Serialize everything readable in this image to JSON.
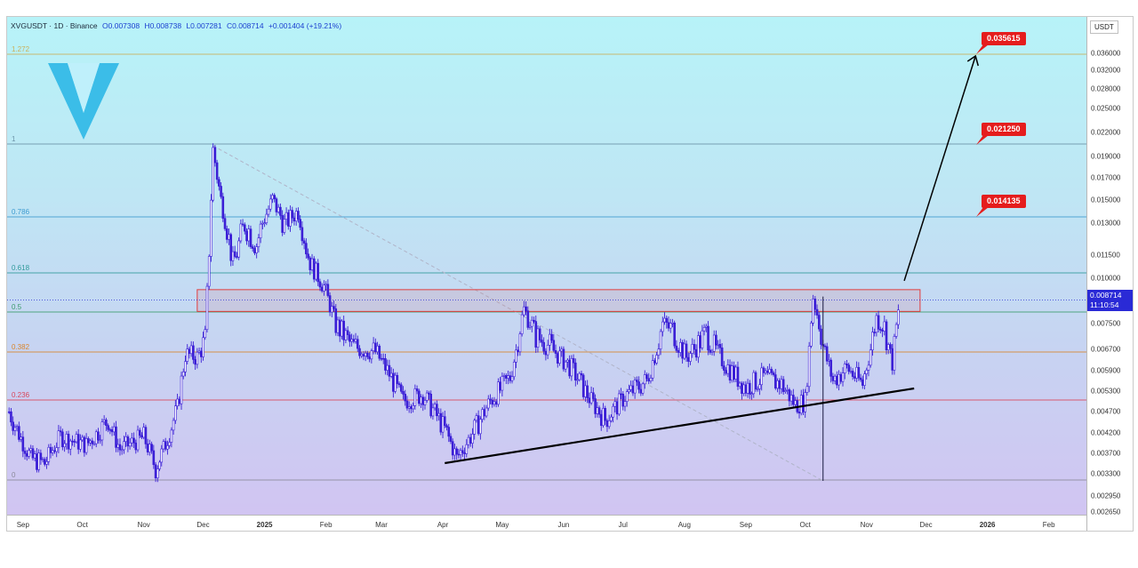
{
  "header": {
    "symbol": "XVGUSDT · 1D · Binance",
    "open": "O0.007308",
    "high": "H0.008738",
    "low": "L0.007281",
    "close": "C0.008714",
    "change": "+0.001404 (+19.21%)"
  },
  "price_axis": {
    "unit": "USDT",
    "current_price": "0.008714",
    "countdown": "11:10:54",
    "ticks": [
      "0.036000",
      "0.032000",
      "0.028000",
      "0.025000",
      "0.022000",
      "0.019000",
      "0.017000",
      "0.015000",
      "0.013000",
      "0.011500",
      "0.010000",
      "0.007500",
      "0.006700",
      "0.005900",
      "0.005300",
      "0.004700",
      "0.004200",
      "0.003700",
      "0.003300",
      "0.002950",
      "0.002650"
    ]
  },
  "time_axis": {
    "ticks": [
      {
        "label": "Sep",
        "bold": false
      },
      {
        "label": "Oct",
        "bold": false
      },
      {
        "label": "Nov",
        "bold": false
      },
      {
        "label": "Dec",
        "bold": false
      },
      {
        "label": "2025",
        "bold": true
      },
      {
        "label": "Feb",
        "bold": false
      },
      {
        "label": "Mar",
        "bold": false
      },
      {
        "label": "Apr",
        "bold": false
      },
      {
        "label": "May",
        "bold": false
      },
      {
        "label": "Jun",
        "bold": false
      },
      {
        "label": "Jul",
        "bold": false
      },
      {
        "label": "Aug",
        "bold": false
      },
      {
        "label": "Sep",
        "bold": false
      },
      {
        "label": "Oct",
        "bold": false
      },
      {
        "label": "Nov",
        "bold": false
      },
      {
        "label": "Dec",
        "bold": false
      },
      {
        "label": "2026",
        "bold": true
      },
      {
        "label": "Feb",
        "bold": false
      }
    ]
  },
  "fib_levels": [
    {
      "label": "1.272",
      "color": "#c9b05a"
    },
    {
      "label": "1",
      "color": "#6b93a8"
    },
    {
      "label": "0.786",
      "color": "#3d9bd0"
    },
    {
      "label": "0.618",
      "color": "#2f9a9a"
    },
    {
      "label": "0.5",
      "color": "#3c9b6c"
    },
    {
      "label": "0.382",
      "color": "#d9852b"
    },
    {
      "label": "0.236",
      "color": "#d9455a"
    },
    {
      "label": "0",
      "color": "#8a8a9a"
    }
  ],
  "targets": [
    "0.035615",
    "0.021250",
    "0.014135"
  ],
  "colors": {
    "candle": "#3b1fd6",
    "resistance_zone": "#e23c3c",
    "target": "#e51d1d",
    "logo": "#3bbde8"
  },
  "chart_data": {
    "type": "candlestick",
    "x_type": "date",
    "y_scale": "log",
    "x_range": [
      "2024-08-24",
      "2026-02-20"
    ],
    "resistance_zone": [
      0.0081,
      0.0093
    ],
    "trendline": {
      "from": {
        "date": "2025-04-02",
        "price": 0.0035
      },
      "to": {
        "date": "2025-11-25",
        "price": 0.0053
      }
    },
    "projection": {
      "from": {
        "date": "2025-11-20",
        "price": 0.0093
      },
      "to": {
        "date": "2025-12-26",
        "price": 0.0352
      }
    },
    "close": [
      {
        "date": "2024-08-25",
        "price": 0.0047
      },
      {
        "date": "2024-09-05",
        "price": 0.0036
      },
      {
        "date": "2024-09-12",
        "price": 0.0035
      },
      {
        "date": "2024-09-20",
        "price": 0.0041
      },
      {
        "date": "2024-10-03",
        "price": 0.0039
      },
      {
        "date": "2024-10-14",
        "price": 0.0045
      },
      {
        "date": "2024-10-20",
        "price": 0.0038
      },
      {
        "date": "2024-11-01",
        "price": 0.0041
      },
      {
        "date": "2024-11-07",
        "price": 0.0034
      },
      {
        "date": "2024-11-11",
        "price": 0.0038
      },
      {
        "date": "2024-11-18",
        "price": 0.0048
      },
      {
        "date": "2024-11-22",
        "price": 0.0065
      },
      {
        "date": "2024-11-28",
        "price": 0.0064
      },
      {
        "date": "2024-12-02",
        "price": 0.007
      },
      {
        "date": "2024-12-06",
        "price": 0.0198
      },
      {
        "date": "2024-12-10",
        "price": 0.015
      },
      {
        "date": "2024-12-16",
        "price": 0.011
      },
      {
        "date": "2024-12-22",
        "price": 0.013
      },
      {
        "date": "2024-12-28",
        "price": 0.012
      },
      {
        "date": "2025-01-05",
        "price": 0.015
      },
      {
        "date": "2025-01-11",
        "price": 0.013
      },
      {
        "date": "2025-01-18",
        "price": 0.014
      },
      {
        "date": "2025-01-24",
        "price": 0.011
      },
      {
        "date": "2025-01-31",
        "price": 0.0095
      },
      {
        "date": "2025-02-06",
        "price": 0.0075
      },
      {
        "date": "2025-02-14",
        "price": 0.0068
      },
      {
        "date": "2025-02-26",
        "price": 0.0066
      },
      {
        "date": "2025-03-05",
        "price": 0.0058
      },
      {
        "date": "2025-03-12",
        "price": 0.005
      },
      {
        "date": "2025-03-22",
        "price": 0.0052
      },
      {
        "date": "2025-04-03",
        "price": 0.0042
      },
      {
        "date": "2025-04-08",
        "price": 0.0036
      },
      {
        "date": "2025-04-15",
        "price": 0.0041
      },
      {
        "date": "2025-04-25",
        "price": 0.005
      },
      {
        "date": "2025-05-05",
        "price": 0.0057
      },
      {
        "date": "2025-05-12",
        "price": 0.0082
      },
      {
        "date": "2025-05-18",
        "price": 0.0071
      },
      {
        "date": "2025-05-25",
        "price": 0.0068
      },
      {
        "date": "2025-06-05",
        "price": 0.006
      },
      {
        "date": "2025-06-15",
        "price": 0.005
      },
      {
        "date": "2025-06-22",
        "price": 0.0045
      },
      {
        "date": "2025-07-03",
        "price": 0.0052
      },
      {
        "date": "2025-07-13",
        "price": 0.0056
      },
      {
        "date": "2025-07-21",
        "price": 0.0075
      },
      {
        "date": "2025-07-26",
        "price": 0.0073
      },
      {
        "date": "2025-08-02",
        "price": 0.0064
      },
      {
        "date": "2025-08-12",
        "price": 0.0072
      },
      {
        "date": "2025-08-22",
        "price": 0.0061
      },
      {
        "date": "2025-09-01",
        "price": 0.0054
      },
      {
        "date": "2025-09-10",
        "price": 0.0057
      },
      {
        "date": "2025-09-19",
        "price": 0.0055
      },
      {
        "date": "2025-09-26",
        "price": 0.0049
      },
      {
        "date": "2025-10-01",
        "price": 0.005
      },
      {
        "date": "2025-10-05",
        "price": 0.0089
      },
      {
        "date": "2025-10-10",
        "price": 0.0068
      },
      {
        "date": "2025-10-15",
        "price": 0.0056
      },
      {
        "date": "2025-10-22",
        "price": 0.006
      },
      {
        "date": "2025-10-30",
        "price": 0.0055
      },
      {
        "date": "2025-11-06",
        "price": 0.0078
      },
      {
        "date": "2025-11-10",
        "price": 0.0074
      },
      {
        "date": "2025-11-14",
        "price": 0.0062
      },
      {
        "date": "2025-11-18",
        "price": 0.0087
      }
    ]
  }
}
